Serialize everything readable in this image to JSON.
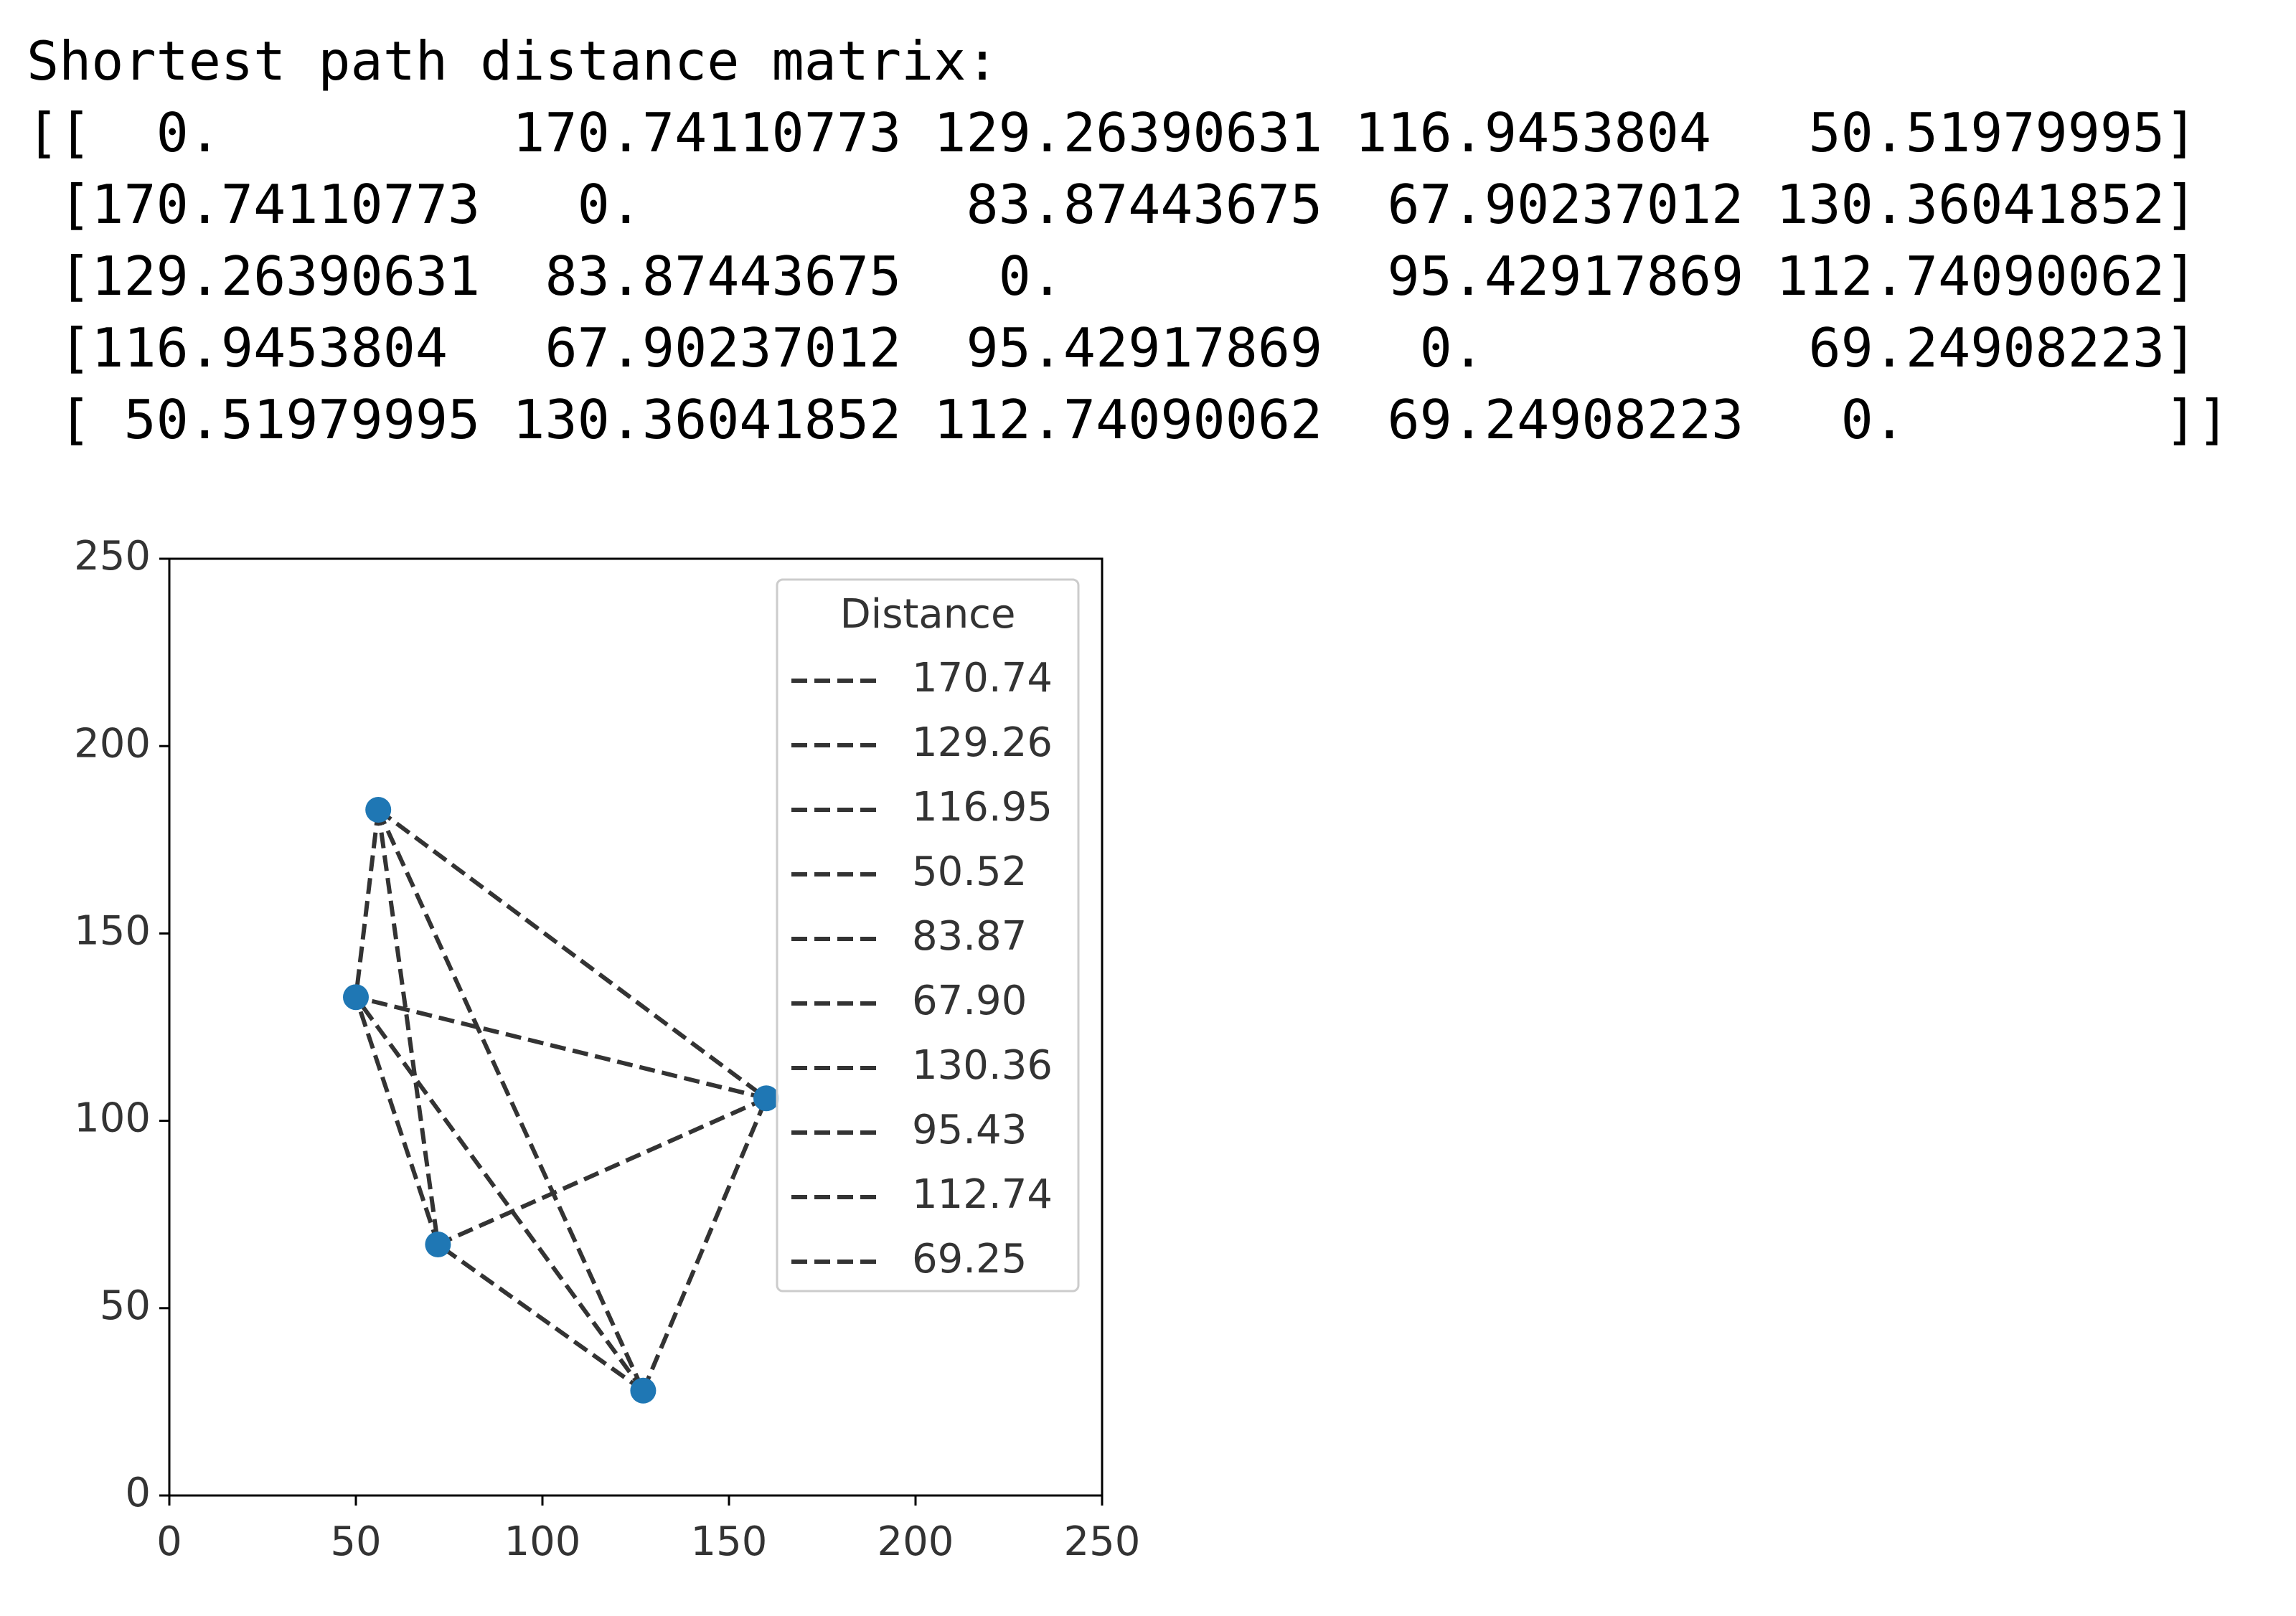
{
  "output": {
    "heading": "Shortest path distance matrix:",
    "lines": [
      "[[  0.         170.74110773 129.26390631 116.9453804   50.51979995]",
      " [170.74110773   0.          83.87443675  67.90237012 130.36041852]",
      " [129.26390631  83.87443675   0.          95.42917869 112.74090062]",
      " [116.9453804   67.90237012  95.42917869   0.          69.24908223]",
      " [ 50.51979995 130.36041852 112.74090062  69.24908223   0.        ]]"
    ]
  },
  "chart_data": {
    "type": "scatter",
    "x": [
      56,
      127,
      160,
      72,
      50
    ],
    "y": [
      183,
      28,
      106,
      67,
      133
    ],
    "color": "#1f77b4",
    "xlim": [
      0,
      250
    ],
    "ylim": [
      0,
      250
    ],
    "xticks": [
      0,
      50,
      100,
      150,
      200,
      250
    ],
    "yticks": [
      0,
      50,
      100,
      150,
      200,
      250
    ],
    "grid": false,
    "legend": "upper right",
    "legend_title": "Distance",
    "series": [
      {
        "name": "170.74",
        "color": "#333333",
        "x": [
          56,
          127
        ],
        "values": [
          183,
          28
        ]
      },
      {
        "name": "129.26",
        "color": "#333333",
        "x": [
          56,
          160
        ],
        "values": [
          183,
          106
        ]
      },
      {
        "name": "116.95",
        "color": "#333333",
        "x": [
          56,
          72
        ],
        "values": [
          183,
          67
        ]
      },
      {
        "name": "50.52",
        "color": "#333333",
        "x": [
          56,
          50
        ],
        "values": [
          183,
          133
        ]
      },
      {
        "name": "83.87",
        "color": "#333333",
        "x": [
          127,
          160
        ],
        "values": [
          28,
          106
        ]
      },
      {
        "name": "67.90",
        "color": "#333333",
        "x": [
          127,
          72
        ],
        "values": [
          28,
          67
        ]
      },
      {
        "name": "130.36",
        "color": "#333333",
        "x": [
          127,
          50
        ],
        "values": [
          28,
          133
        ]
      },
      {
        "name": "95.43",
        "color": "#333333",
        "x": [
          160,
          72
        ],
        "values": [
          106,
          67
        ]
      },
      {
        "name": "112.74",
        "color": "#333333",
        "x": [
          160,
          50
        ],
        "values": [
          106,
          133
        ]
      },
      {
        "name": "69.25",
        "color": "#333333",
        "x": [
          72,
          50
        ],
        "values": [
          67,
          133
        ]
      }
    ]
  }
}
